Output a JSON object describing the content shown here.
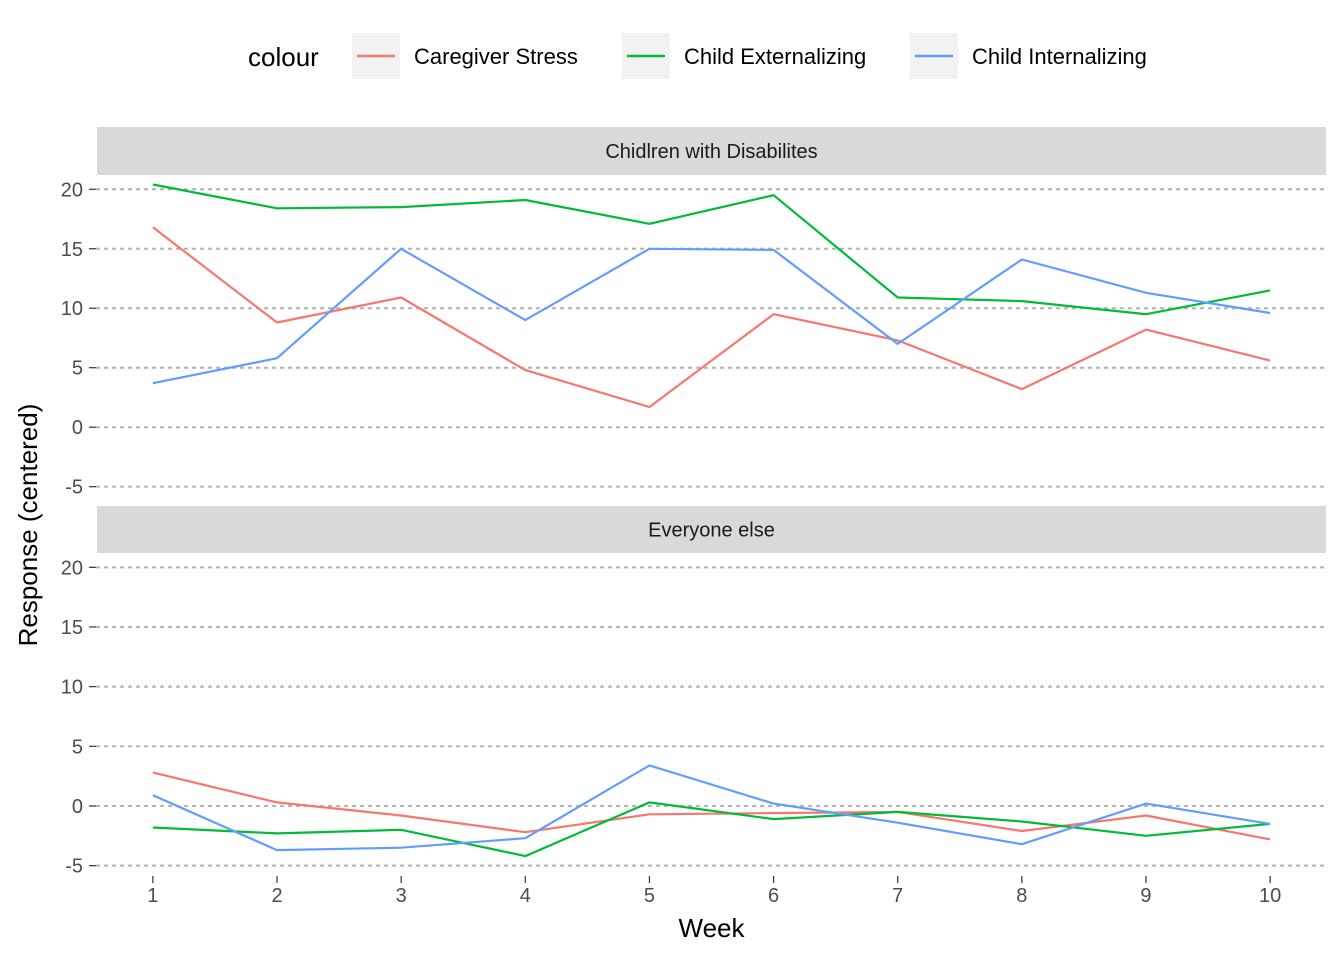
{
  "chart_data": {
    "type": "line",
    "xlabel": "Week",
    "ylabel": "Response (centered)",
    "x": [
      1,
      2,
      3,
      4,
      5,
      6,
      7,
      8,
      9,
      10
    ],
    "xlim": [
      0.55,
      10.45
    ],
    "ylim": [
      -5.7,
      21.2
    ],
    "yticks": [
      -5,
      0,
      5,
      10,
      15,
      20
    ],
    "grid": "horizontal dotted",
    "legend": {
      "title": "colour",
      "placement": "top",
      "entries": [
        {
          "name": "Caregiver Stress",
          "color": "#F8766D"
        },
        {
          "name": "Child Externalizing",
          "color": "#00BA38"
        },
        {
          "name": "Child Internalizing",
          "color": "#619CFF"
        }
      ]
    },
    "facets": [
      {
        "label": "Chidlren with Disabilites",
        "series": [
          {
            "name": "Caregiver Stress",
            "color": "#F8766D",
            "values": [
              16.8,
              8.8,
              10.9,
              4.8,
              1.7,
              9.5,
              7.3,
              3.2,
              8.2,
              5.6
            ]
          },
          {
            "name": "Child Externalizing",
            "color": "#00BA38",
            "values": [
              20.4,
              18.4,
              18.5,
              19.1,
              17.1,
              19.5,
              10.9,
              10.6,
              9.5,
              11.5
            ]
          },
          {
            "name": "Child Internalizing",
            "color": "#619CFF",
            "values": [
              3.7,
              5.8,
              15.0,
              9.0,
              15.0,
              14.9,
              7.0,
              14.1,
              11.3,
              9.6
            ]
          }
        ]
      },
      {
        "label": "Everyone else",
        "series": [
          {
            "name": "Caregiver Stress",
            "color": "#F8766D",
            "values": [
              2.8,
              0.3,
              -0.8,
              -2.2,
              -0.7,
              -0.6,
              -0.5,
              -2.1,
              -0.8,
              -2.8
            ]
          },
          {
            "name": "Child Externalizing",
            "color": "#00BA38",
            "values": [
              -1.8,
              -2.3,
              -2.0,
              -4.2,
              0.3,
              -1.1,
              -0.5,
              -1.3,
              -2.5,
              -1.5
            ]
          },
          {
            "name": "Child Internalizing",
            "color": "#619CFF",
            "values": [
              0.9,
              -3.7,
              -3.5,
              -2.7,
              3.4,
              0.2,
              -1.4,
              -3.2,
              0.2,
              -1.5
            ]
          }
        ]
      }
    ]
  }
}
